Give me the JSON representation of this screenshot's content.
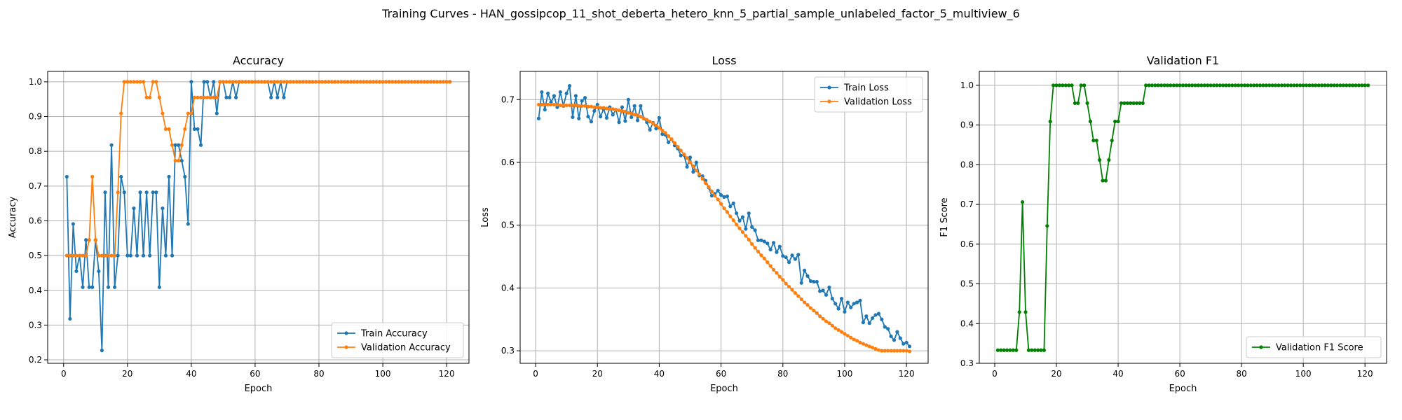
{
  "figure": {
    "suptitle": "Training Curves - HAN_gossipcop_11_shot_deberta_hetero_knn_5_partial_sample_unlabeled_factor_5_multiview_6"
  },
  "colors": {
    "train": "#1f77b4",
    "validation": "#ff7f0e",
    "f1": "#008000",
    "grid": "#b0b0b0",
    "axis": "#000000"
  },
  "chart_data": [
    {
      "type": "line",
      "title": "Accuracy",
      "xlabel": "Epoch",
      "ylabel": "Accuracy",
      "xlim": [
        -5,
        127
      ],
      "ylim": [
        0.19,
        1.03
      ],
      "xticks": [
        0,
        20,
        40,
        60,
        80,
        100,
        120
      ],
      "yticks": [
        0.2,
        0.3,
        0.4,
        0.5,
        0.6,
        0.7,
        0.8,
        0.9,
        1.0
      ],
      "ytick_labels": [
        "0.2",
        "0.3",
        "0.4",
        "0.5",
        "0.6",
        "0.7",
        "0.8",
        "0.9",
        "1.0"
      ],
      "grid": true,
      "legend_position": "lower-right",
      "x": "1..121",
      "series": [
        {
          "name": "Train Accuracy",
          "color_key": "train",
          "values": [
            0.727,
            0.318,
            0.591,
            0.455,
            0.5,
            0.409,
            0.545,
            0.409,
            0.409,
            0.545,
            0.455,
            0.227,
            0.682,
            0.409,
            0.818,
            0.409,
            0.5,
            0.727,
            0.682,
            0.5,
            0.5,
            0.636,
            0.5,
            0.682,
            0.5,
            0.682,
            0.5,
            0.682,
            0.682,
            0.409,
            0.636,
            0.5,
            0.727,
            0.5,
            0.818,
            0.818,
            0.773,
            0.727,
            0.591,
            1.0,
            0.864,
            0.864,
            0.818,
            1.0,
            1.0,
            0.955,
            1.0,
            0.909,
            1.0,
            1.0,
            0.955,
            0.955,
            1.0,
            0.955,
            1.0,
            1.0,
            1.0,
            1.0,
            1.0,
            1.0,
            1.0,
            1.0,
            1.0,
            1.0,
            0.955,
            1.0,
            0.955,
            1.0,
            0.955,
            1.0,
            1.0,
            1.0,
            1.0,
            1.0,
            1.0,
            1.0,
            1.0,
            1.0,
            1.0,
            1.0,
            1.0,
            1.0,
            1.0,
            1.0,
            1.0,
            1.0,
            1.0,
            1.0,
            1.0,
            1.0,
            1.0,
            1.0,
            1.0,
            1.0,
            1.0,
            1.0,
            1.0,
            1.0,
            1.0,
            1.0,
            1.0,
            1.0,
            1.0,
            1.0,
            1.0,
            1.0,
            1.0,
            1.0,
            1.0,
            1.0,
            1.0,
            1.0,
            1.0,
            1.0,
            1.0,
            1.0,
            1.0,
            1.0,
            1.0,
            1.0,
            1.0
          ]
        },
        {
          "name": "Validation Accuracy",
          "color_key": "validation",
          "values": [
            0.5,
            0.5,
            0.5,
            0.5,
            0.5,
            0.5,
            0.5,
            0.545,
            0.727,
            0.545,
            0.5,
            0.5,
            0.5,
            0.5,
            0.5,
            0.5,
            0.682,
            0.909,
            1.0,
            1.0,
            1.0,
            1.0,
            1.0,
            1.0,
            1.0,
            0.955,
            0.955,
            1.0,
            1.0,
            0.955,
            0.909,
            0.864,
            0.864,
            0.818,
            0.773,
            0.773,
            0.818,
            0.864,
            0.909,
            0.909,
            0.955,
            0.955,
            0.955,
            0.955,
            0.955,
            0.955,
            0.955,
            0.955,
            1.0,
            1.0,
            1.0,
            1.0,
            1.0,
            1.0,
            1.0,
            1.0,
            1.0,
            1.0,
            1.0,
            1.0,
            1.0,
            1.0,
            1.0,
            1.0,
            1.0,
            1.0,
            1.0,
            1.0,
            1.0,
            1.0,
            1.0,
            1.0,
            1.0,
            1.0,
            1.0,
            1.0,
            1.0,
            1.0,
            1.0,
            1.0,
            1.0,
            1.0,
            1.0,
            1.0,
            1.0,
            1.0,
            1.0,
            1.0,
            1.0,
            1.0,
            1.0,
            1.0,
            1.0,
            1.0,
            1.0,
            1.0,
            1.0,
            1.0,
            1.0,
            1.0,
            1.0,
            1.0,
            1.0,
            1.0,
            1.0,
            1.0,
            1.0,
            1.0,
            1.0,
            1.0,
            1.0,
            1.0,
            1.0,
            1.0,
            1.0,
            1.0,
            1.0,
            1.0,
            1.0,
            1.0,
            1.0
          ]
        }
      ]
    },
    {
      "type": "line",
      "title": "Loss",
      "xlabel": "Epoch",
      "ylabel": "Loss",
      "xlim": [
        -5,
        127
      ],
      "ylim": [
        0.28,
        0.745
      ],
      "xticks": [
        0,
        20,
        40,
        60,
        80,
        100,
        120
      ],
      "yticks": [
        0.3,
        0.4,
        0.5,
        0.6,
        0.7
      ],
      "ytick_labels": [
        "0.3",
        "0.4",
        "0.5",
        "0.6",
        "0.7"
      ],
      "grid": true,
      "legend_position": "top-right",
      "x": "1..121",
      "series": [
        {
          "name": "Train Loss",
          "color_key": "train",
          "values": [
            0.67,
            0.712,
            0.684,
            0.71,
            0.696,
            0.706,
            0.688,
            0.712,
            0.69,
            0.71,
            0.722,
            0.672,
            0.706,
            0.67,
            0.698,
            0.703,
            0.673,
            0.665,
            0.682,
            0.692,
            0.673,
            0.685,
            0.671,
            0.688,
            0.676,
            0.684,
            0.664,
            0.688,
            0.666,
            0.7,
            0.672,
            0.69,
            0.667,
            0.69,
            0.67,
            0.664,
            0.652,
            0.663,
            0.654,
            0.671,
            0.645,
            0.644,
            0.632,
            0.637,
            0.627,
            0.622,
            0.611,
            0.612,
            0.593,
            0.608,
            0.585,
            0.6,
            0.579,
            0.578,
            0.571,
            0.56,
            0.547,
            0.55,
            0.555,
            0.548,
            0.545,
            0.546,
            0.53,
            0.535,
            0.519,
            0.507,
            0.513,
            0.494,
            0.519,
            0.497,
            0.492,
            0.476,
            0.476,
            0.474,
            0.471,
            0.461,
            0.472,
            0.457,
            0.466,
            0.451,
            0.449,
            0.441,
            0.452,
            0.446,
            0.453,
            0.408,
            0.428,
            0.419,
            0.411,
            0.41,
            0.41,
            0.395,
            0.396,
            0.389,
            0.401,
            0.383,
            0.375,
            0.367,
            0.383,
            0.362,
            0.377,
            0.369,
            0.375,
            0.377,
            0.38,
            0.345,
            0.355,
            0.344,
            0.352,
            0.357,
            0.359,
            0.35,
            0.338,
            0.335,
            0.323,
            0.317,
            0.33,
            0.32,
            0.311,
            0.313,
            0.307
          ]
        },
        {
          "name": "Validation Loss",
          "color_key": "validation",
          "values": [
            0.692,
            0.692,
            0.692,
            0.692,
            0.692,
            0.692,
            0.692,
            0.691,
            0.691,
            0.691,
            0.691,
            0.691,
            0.691,
            0.69,
            0.69,
            0.69,
            0.689,
            0.689,
            0.688,
            0.688,
            0.687,
            0.687,
            0.686,
            0.685,
            0.685,
            0.684,
            0.683,
            0.682,
            0.681,
            0.679,
            0.678,
            0.676,
            0.675,
            0.673,
            0.67,
            0.668,
            0.665,
            0.662,
            0.659,
            0.655,
            0.651,
            0.647,
            0.642,
            0.637,
            0.631,
            0.625,
            0.619,
            0.613,
            0.607,
            0.6,
            0.594,
            0.587,
            0.581,
            0.574,
            0.567,
            0.561,
            0.554,
            0.547,
            0.541,
            0.534,
            0.527,
            0.521,
            0.514,
            0.508,
            0.501,
            0.495,
            0.489,
            0.483,
            0.477,
            0.47,
            0.464,
            0.458,
            0.452,
            0.447,
            0.441,
            0.435,
            0.429,
            0.424,
            0.418,
            0.413,
            0.407,
            0.402,
            0.397,
            0.392,
            0.387,
            0.382,
            0.377,
            0.373,
            0.368,
            0.364,
            0.36,
            0.355,
            0.351,
            0.347,
            0.344,
            0.34,
            0.336,
            0.333,
            0.33,
            0.327,
            0.324,
            0.321,
            0.318,
            0.316,
            0.313,
            0.311,
            0.309,
            0.307,
            0.305,
            0.303,
            0.301,
            0.3,
            0.3,
            0.3,
            0.3,
            0.3,
            0.3,
            0.3,
            0.3,
            0.3,
            0.299
          ]
        }
      ]
    },
    {
      "type": "line",
      "title": "Validation F1",
      "xlabel": "Epoch",
      "ylabel": "F1 Score",
      "xlim": [
        -5,
        127
      ],
      "ylim": [
        0.3,
        1.035
      ],
      "xticks": [
        0,
        20,
        40,
        60,
        80,
        100,
        120
      ],
      "yticks": [
        0.3,
        0.4,
        0.5,
        0.6,
        0.7,
        0.8,
        0.9,
        1.0
      ],
      "ytick_labels": [
        "0.3",
        "0.4",
        "0.5",
        "0.6",
        "0.7",
        "0.8",
        "0.9",
        "1.0"
      ],
      "grid": true,
      "legend_position": "lower-right",
      "x": "1..121",
      "series": [
        {
          "name": "Validation F1 Score",
          "color_key": "f1",
          "values": [
            0.333,
            0.333,
            0.333,
            0.333,
            0.333,
            0.333,
            0.333,
            0.429,
            0.706,
            0.429,
            0.333,
            0.333,
            0.333,
            0.333,
            0.333,
            0.333,
            0.646,
            0.909,
            1.0,
            1.0,
            1.0,
            1.0,
            1.0,
            1.0,
            1.0,
            0.955,
            0.955,
            1.0,
            1.0,
            0.955,
            0.909,
            0.861,
            0.861,
            0.812,
            0.76,
            0.76,
            0.812,
            0.861,
            0.909,
            0.909,
            0.955,
            0.955,
            0.955,
            0.955,
            0.955,
            0.955,
            0.955,
            0.955,
            1.0,
            1.0,
            1.0,
            1.0,
            1.0,
            1.0,
            1.0,
            1.0,
            1.0,
            1.0,
            1.0,
            1.0,
            1.0,
            1.0,
            1.0,
            1.0,
            1.0,
            1.0,
            1.0,
            1.0,
            1.0,
            1.0,
            1.0,
            1.0,
            1.0,
            1.0,
            1.0,
            1.0,
            1.0,
            1.0,
            1.0,
            1.0,
            1.0,
            1.0,
            1.0,
            1.0,
            1.0,
            1.0,
            1.0,
            1.0,
            1.0,
            1.0,
            1.0,
            1.0,
            1.0,
            1.0,
            1.0,
            1.0,
            1.0,
            1.0,
            1.0,
            1.0,
            1.0,
            1.0,
            1.0,
            1.0,
            1.0,
            1.0,
            1.0,
            1.0,
            1.0,
            1.0,
            1.0,
            1.0,
            1.0,
            1.0,
            1.0,
            1.0,
            1.0,
            1.0,
            1.0,
            1.0,
            1.0
          ]
        }
      ]
    }
  ]
}
